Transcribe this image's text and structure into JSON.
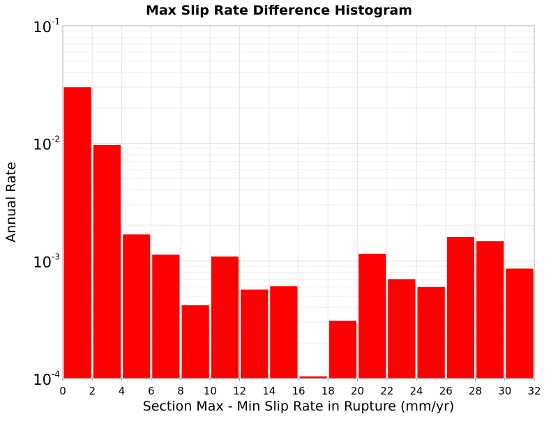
{
  "chart_data": {
    "type": "bar",
    "title": "Max Slip Rate Difference Histogram",
    "xlabel": "Section Max - Min Slip Rate in Rupture (mm/yr)",
    "ylabel": "Annual Rate",
    "xlim": [
      0,
      32
    ],
    "ylim": [
      0.0001,
      0.1
    ],
    "yscale": "log",
    "grid": true,
    "bar_color": "#ff0000",
    "x_ticks": [
      0,
      2,
      4,
      6,
      8,
      10,
      12,
      14,
      16,
      18,
      20,
      22,
      24,
      26,
      28,
      30,
      32
    ],
    "x_tick_labels": [
      "0",
      "2",
      "4",
      "6",
      "8",
      "10",
      "12",
      "14",
      "16",
      "18",
      "20",
      "22",
      "24",
      "26",
      "28",
      "30",
      "32"
    ],
    "y_ticks": [
      {
        "value": 0.1,
        "base": "10",
        "exp": "-1"
      },
      {
        "value": 0.01,
        "base": "10",
        "exp": "-2"
      },
      {
        "value": 0.001,
        "base": "10",
        "exp": "-3"
      },
      {
        "value": 0.0001,
        "base": "10",
        "exp": "-4"
      }
    ],
    "bins": [
      {
        "x0": 0,
        "x1": 2,
        "value": 0.03
      },
      {
        "x0": 2,
        "x1": 4,
        "value": 0.0097
      },
      {
        "x0": 4,
        "x1": 6,
        "value": 0.00168
      },
      {
        "x0": 6,
        "x1": 8,
        "value": 0.00113
      },
      {
        "x0": 8,
        "x1": 10,
        "value": 0.00042
      },
      {
        "x0": 10,
        "x1": 12,
        "value": 0.00109
      },
      {
        "x0": 12,
        "x1": 14,
        "value": 0.00057
      },
      {
        "x0": 14,
        "x1": 16,
        "value": 0.00061
      },
      {
        "x0": 16,
        "x1": 18,
        "value": 0.000104
      },
      {
        "x0": 18,
        "x1": 20,
        "value": 0.00031
      },
      {
        "x0": 20,
        "x1": 22,
        "value": 0.00115
      },
      {
        "x0": 22,
        "x1": 24,
        "value": 0.0007
      },
      {
        "x0": 24,
        "x1": 26,
        "value": 0.0006
      },
      {
        "x0": 26,
        "x1": 28,
        "value": 0.0016
      },
      {
        "x0": 28,
        "x1": 30,
        "value": 0.00147
      },
      {
        "x0": 30,
        "x1": 32,
        "value": 0.00086
      }
    ]
  }
}
